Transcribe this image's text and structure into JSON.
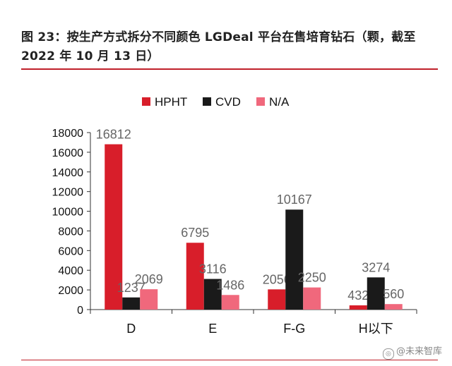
{
  "title": "图 23：按生产方式拆分不同颜色 LGDeal 平台在售培育钻石（颗，截至 2022 年 10 月 13 日）",
  "watermark": "@未来智库",
  "chart_data": {
    "type": "bar",
    "title": "",
    "xlabel": "",
    "ylabel": "",
    "ylim": [
      0,
      18000
    ],
    "yticks": [
      0,
      2000,
      4000,
      6000,
      8000,
      10000,
      12000,
      14000,
      16000,
      18000
    ],
    "grid": false,
    "legend_position": "top",
    "categories": [
      "D",
      "E",
      "F-G",
      "H以下"
    ],
    "series": [
      {
        "name": "HPHT",
        "color": "#d81e2a",
        "values": [
          16812,
          6795,
          2056,
          432
        ]
      },
      {
        "name": "CVD",
        "color": "#1a1a1a",
        "values": [
          1237,
          3116,
          10167,
          3274
        ]
      },
      {
        "name": "N/A",
        "color": "#f0687c",
        "values": [
          2069,
          1486,
          2250,
          560
        ]
      }
    ]
  }
}
